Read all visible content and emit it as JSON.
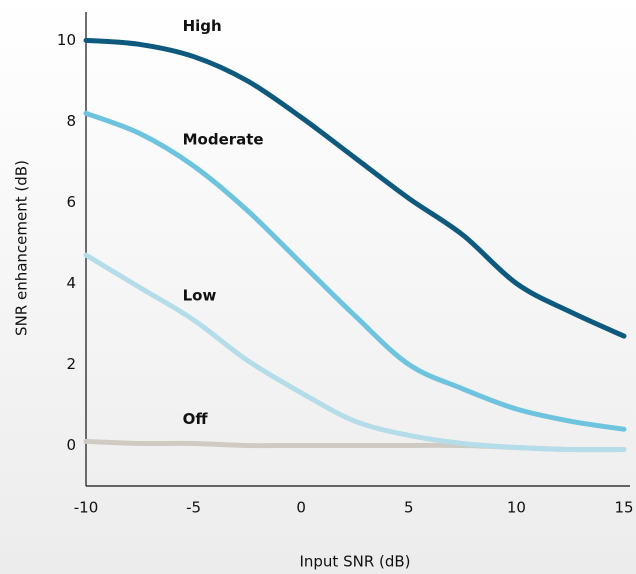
{
  "chart_data": {
    "type": "line",
    "x_label": "Input SNR (dB)",
    "y_label": "SNR enhancement (dB)",
    "x": [
      -10,
      -7.5,
      -5,
      -2.5,
      0,
      2.5,
      5,
      7.5,
      10,
      12.5,
      15
    ],
    "series": [
      {
        "name": "High",
        "color": "#0d5a7e",
        "values": [
          10.0,
          9.9,
          9.6,
          9.0,
          8.1,
          7.1,
          6.1,
          5.2,
          4.0,
          3.3,
          2.7
        ]
      },
      {
        "name": "Moderate",
        "color": "#6ec4de",
        "values": [
          8.2,
          7.7,
          6.9,
          5.8,
          4.5,
          3.2,
          2.0,
          1.4,
          0.9,
          0.6,
          0.4
        ]
      },
      {
        "name": "Low",
        "color": "#b4dde9",
        "values": [
          4.7,
          3.9,
          3.1,
          2.1,
          1.3,
          0.6,
          0.25,
          0.05,
          -0.05,
          -0.1,
          -0.1
        ]
      },
      {
        "name": "Off",
        "color": "#cfcbc4",
        "values": [
          0.1,
          0.05,
          0.05,
          0,
          0,
          0,
          0,
          0,
          -0.05,
          -0.1,
          -0.1
        ]
      }
    ],
    "xlim": [
      -10,
      15
    ],
    "xticks": [
      -10,
      -5,
      0,
      5,
      10,
      15
    ],
    "ylim": [
      -1,
      10.7
    ],
    "yticks": [
      0,
      2,
      4,
      6,
      8,
      10
    ],
    "grid": false
  }
}
